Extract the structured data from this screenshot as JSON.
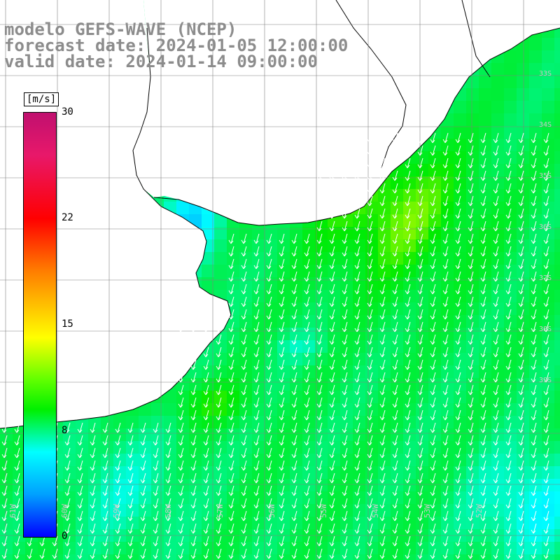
{
  "header": {
    "line1": "modelo GEFS-WAVE (NCEP)",
    "line2": "forecast date: 2024-01-05 12:00:00",
    "line3": "valid date: 2024-01-14 09:00:00"
  },
  "colorbar": {
    "unit": "[m/s]",
    "ticks": [
      "30",
      "22",
      "15",
      "8",
      "0"
    ],
    "min": 0,
    "max": 30,
    "colors": [
      "#0000ff",
      "#00a0ff",
      "#00ffff",
      "#00f000",
      "#60ff00",
      "#ffff00",
      "#ff7a00",
      "#ff0000",
      "#c0106f"
    ]
  },
  "map": {
    "land_color": "#ffffff",
    "coast_color": "#000000",
    "grid_color": "#808080",
    "lon_labels": [
      "61W",
      "60W",
      "59W",
      "58W",
      "57W",
      "56W",
      "55W",
      "54W",
      "53W",
      "52W"
    ],
    "lat_labels": [
      "33S",
      "34S",
      "35S",
      "36S",
      "37S",
      "38S",
      "39S"
    ],
    "arrow_color": "#ffffff",
    "wind_direction": "toward south-southwest"
  }
}
